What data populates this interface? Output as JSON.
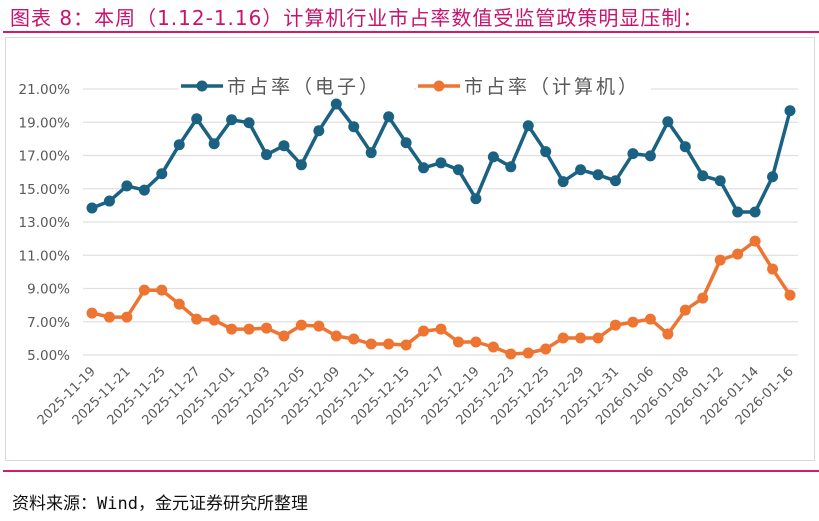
{
  "title": "图表 8：本周（1.12-1.16）计算机行业市占率数值受监管政策明显压制：",
  "source": "资料来源：Wind，金元证券研究所整理",
  "colors": {
    "title": "#c8146e",
    "rule": "#d31a6f",
    "series_electronics": "#1a6182",
    "series_computer": "#ee7431",
    "grid": "#e0e0e0",
    "axis_text": "#595959"
  },
  "chart_data": {
    "type": "line",
    "title": "",
    "xlabel": "",
    "ylabel": "",
    "ylim": [
      5,
      21
    ],
    "yticks": [
      "5.00%",
      "7.00%",
      "9.00%",
      "11.00%",
      "13.00%",
      "15.00%",
      "17.00%",
      "19.00%",
      "21.00%"
    ],
    "grid": true,
    "legend_position": "top",
    "x_tick_labels": [
      "2025-11-19",
      "2025-11-21",
      "2025-11-25",
      "2025-11-27",
      "2025-12-01",
      "2025-12-03",
      "2025-12-05",
      "2025-12-09",
      "2025-12-11",
      "2025-12-15",
      "2025-12-17",
      "2025-12-19",
      "2025-12-23",
      "2025-12-25",
      "2025-12-29",
      "2025-12-31",
      "2026-01-06",
      "2026-01-08",
      "2026-01-12",
      "2026-01-14",
      "2026-01-16"
    ],
    "x_tick_every": 2,
    "point_count": 41,
    "series": [
      {
        "name": "市占率（电子）",
        "color": "#1a6182",
        "values": [
          13.84,
          14.26,
          15.17,
          14.92,
          15.9,
          17.65,
          19.21,
          17.71,
          19.15,
          18.97,
          17.05,
          17.59,
          16.44,
          18.49,
          20.1,
          18.73,
          17.17,
          19.33,
          17.77,
          16.26,
          16.56,
          16.14,
          14.4,
          16.92,
          16.32,
          18.79,
          17.23,
          15.43,
          16.14,
          15.84,
          15.48,
          17.11,
          16.98,
          19.03,
          17.53,
          15.78,
          15.48,
          13.6,
          13.6,
          15.72,
          19.69
        ]
      },
      {
        "name": "市占率（计算机）",
        "color": "#ee7431",
        "values": [
          7.52,
          7.28,
          7.28,
          8.9,
          8.9,
          8.06,
          7.16,
          7.1,
          6.56,
          6.56,
          6.62,
          6.14,
          6.8,
          6.74,
          6.14,
          5.96,
          5.66,
          5.66,
          5.6,
          6.44,
          6.56,
          5.78,
          5.78,
          5.48,
          5.06,
          5.12,
          5.36,
          6.02,
          6.02,
          6.02,
          6.8,
          6.98,
          7.16,
          6.26,
          7.7,
          8.42,
          10.71,
          11.07,
          11.85,
          10.17,
          8.6
        ]
      }
    ]
  }
}
